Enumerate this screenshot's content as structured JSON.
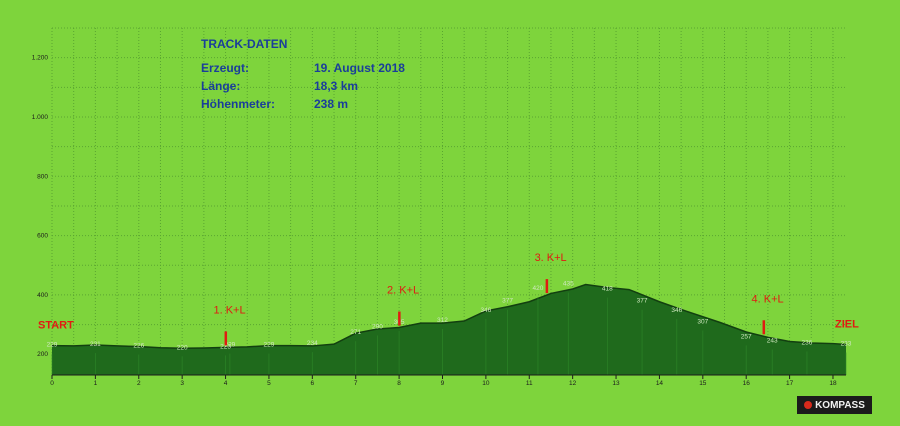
{
  "track": {
    "title": "TRACK-DATEN",
    "rows": [
      {
        "label": "Erzeugt:",
        "value": "19. August 2018"
      },
      {
        "label": "Länge:",
        "value": "18,3 km"
      },
      {
        "label": "Höhenmeter:",
        "value": "238 m"
      }
    ]
  },
  "chart_data": {
    "type": "area",
    "title": "",
    "xlabel": "",
    "ylabel": "",
    "xlim": [
      0,
      18.3
    ],
    "ylim": [
      130,
      1300
    ],
    "grid": true,
    "x_ticks": [
      0,
      1,
      2,
      3,
      4,
      5,
      6,
      7,
      8,
      9,
      10,
      11,
      12,
      13,
      14,
      15,
      16,
      17,
      18
    ],
    "y_ticks": [
      {
        "value": 200,
        "label": "200"
      },
      {
        "value": 400,
        "label": "400"
      },
      {
        "value": 600,
        "label": "600"
      },
      {
        "value": 800,
        "label": "800"
      },
      {
        "value": 1000,
        "label": "1.000"
      },
      {
        "value": 1200,
        "label": "1.200"
      }
    ],
    "profile": [
      {
        "x": 0,
        "y": 229
      },
      {
        "x": 0.5,
        "y": 228
      },
      {
        "x": 1,
        "y": 231
      },
      {
        "x": 1.5,
        "y": 228
      },
      {
        "x": 2,
        "y": 226
      },
      {
        "x": 2.5,
        "y": 222
      },
      {
        "x": 3,
        "y": 220
      },
      {
        "x": 3.5,
        "y": 221
      },
      {
        "x": 4,
        "y": 223
      },
      {
        "x": 4.5,
        "y": 225
      },
      {
        "x": 5,
        "y": 229
      },
      {
        "x": 5.5,
        "y": 229
      },
      {
        "x": 6,
        "y": 228
      },
      {
        "x": 6.5,
        "y": 234
      },
      {
        "x": 7,
        "y": 271
      },
      {
        "x": 7.5,
        "y": 285
      },
      {
        "x": 8,
        "y": 290
      },
      {
        "x": 8.5,
        "y": 305
      },
      {
        "x": 9,
        "y": 305
      },
      {
        "x": 9.5,
        "y": 312
      },
      {
        "x": 10,
        "y": 346
      },
      {
        "x": 10.5,
        "y": 360
      },
      {
        "x": 11,
        "y": 377
      },
      {
        "x": 11.5,
        "y": 405
      },
      {
        "x": 12,
        "y": 420
      },
      {
        "x": 12.3,
        "y": 435
      },
      {
        "x": 12.8,
        "y": 425
      },
      {
        "x": 13.3,
        "y": 418
      },
      {
        "x": 14,
        "y": 377
      },
      {
        "x": 14.6,
        "y": 346
      },
      {
        "x": 15.4,
        "y": 307
      },
      {
        "x": 16,
        "y": 275
      },
      {
        "x": 16.5,
        "y": 257
      },
      {
        "x": 17,
        "y": 243
      },
      {
        "x": 17.5,
        "y": 238
      },
      {
        "x": 18,
        "y": 236
      },
      {
        "x": 18.3,
        "y": 233
      }
    ],
    "elevation_labels": [
      {
        "x": 0,
        "y": 229,
        "label": "229"
      },
      {
        "x": 1,
        "y": 231,
        "label": "231"
      },
      {
        "x": 2,
        "y": 226,
        "label": "226"
      },
      {
        "x": 3,
        "y": 220,
        "label": "220"
      },
      {
        "x": 4,
        "y": 223,
        "label": "223"
      },
      {
        "x": 4.1,
        "y": 229,
        "label": "229"
      },
      {
        "x": 5,
        "y": 229,
        "label": "229"
      },
      {
        "x": 6,
        "y": 234,
        "label": "234"
      },
      {
        "x": 7,
        "y": 271,
        "label": "271"
      },
      {
        "x": 7.5,
        "y": 290,
        "label": "290"
      },
      {
        "x": 8,
        "y": 305,
        "label": "305"
      },
      {
        "x": 9,
        "y": 312,
        "label": "312"
      },
      {
        "x": 10,
        "y": 346,
        "label": "346"
      },
      {
        "x": 10.5,
        "y": 377,
        "label": "377"
      },
      {
        "x": 11.2,
        "y": 420,
        "label": "420"
      },
      {
        "x": 11.9,
        "y": 435,
        "label": "435"
      },
      {
        "x": 12.8,
        "y": 418,
        "label": "418"
      },
      {
        "x": 13.6,
        "y": 377,
        "label": "377"
      },
      {
        "x": 14.4,
        "y": 346,
        "label": "346"
      },
      {
        "x": 15,
        "y": 307,
        "label": "307"
      },
      {
        "x": 16,
        "y": 257,
        "label": "257"
      },
      {
        "x": 16.6,
        "y": 243,
        "label": "243"
      },
      {
        "x": 17.4,
        "y": 236,
        "label": "236"
      },
      {
        "x": 18.3,
        "y": 233,
        "label": "233"
      }
    ],
    "checkpoints": [
      {
        "x": 4,
        "label": "1. K+L"
      },
      {
        "x": 8,
        "label": "2. K+L"
      },
      {
        "x": 11.4,
        "label": "3. K+L"
      },
      {
        "x": 16.4,
        "label": "4. K+L"
      }
    ],
    "start_label": "START",
    "end_label": "ZIEL",
    "colors": {
      "background": "#7ed43c",
      "profile_fill": "#1f6a1c",
      "profile_line": "#123f10",
      "grid": "#5aa530",
      "marker": "#e01b12",
      "checkpoint_text": "#e01b12",
      "value_text": "#cfe8bf",
      "axis_text": "#1b1b1b"
    }
  },
  "logo": {
    "text": "KOMPASS"
  }
}
